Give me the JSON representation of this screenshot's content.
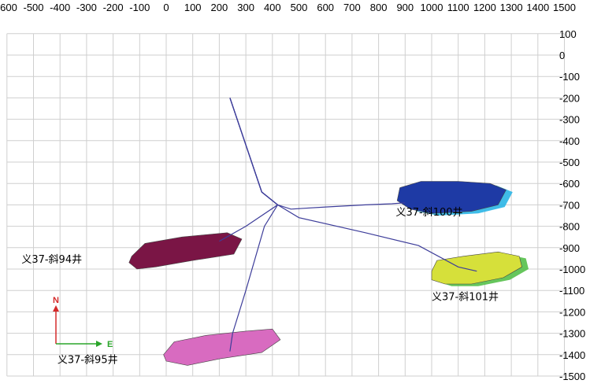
{
  "chart_data": {
    "type": "scatter",
    "title": "",
    "xlabel": "",
    "ylabel": "",
    "xlim": [
      -600,
      1500
    ],
    "ylim": [
      -1500,
      100
    ],
    "grid": true,
    "x_ticks": [
      -600,
      -500,
      -400,
      -300,
      -200,
      -100,
      0,
      100,
      200,
      300,
      400,
      500,
      600,
      700,
      800,
      900,
      1000,
      1100,
      1200,
      1300,
      1400,
      1500
    ],
    "y_ticks": [
      100,
      0,
      -100,
      -200,
      -300,
      -400,
      -500,
      -600,
      -700,
      -800,
      -900,
      -1000,
      -1100,
      -1200,
      -1300,
      -1400,
      -1500
    ],
    "wells": [
      {
        "name": "义37-斜94井",
        "label_at": [
          -545,
          -970
        ],
        "color": "#7a1545",
        "path": [
          [
            240,
            -200
          ],
          [
            360,
            -640
          ],
          [
            420,
            -700
          ],
          [
            300,
            -800
          ],
          [
            200,
            -870
          ]
        ],
        "blob": [
          [
            -130,
            -940
          ],
          [
            -80,
            -880
          ],
          [
            60,
            -850
          ],
          [
            230,
            -830
          ],
          [
            285,
            -860
          ],
          [
            255,
            -930
          ],
          [
            100,
            -960
          ],
          [
            -40,
            -990
          ],
          [
            -110,
            -1000
          ],
          [
            -140,
            -970
          ]
        ]
      },
      {
        "name": "义37-斜95井",
        "label_at": [
          -410,
          -1440
        ],
        "color": "#d86bc0",
        "path": [
          [
            240,
            -200
          ],
          [
            360,
            -640
          ],
          [
            420,
            -700
          ],
          [
            370,
            -800
          ],
          [
            300,
            -1100
          ],
          [
            250,
            -1300
          ],
          [
            240,
            -1385
          ]
        ],
        "blob": [
          [
            -10,
            -1400
          ],
          [
            30,
            -1340
          ],
          [
            150,
            -1310
          ],
          [
            300,
            -1290
          ],
          [
            400,
            -1280
          ],
          [
            430,
            -1330
          ],
          [
            360,
            -1390
          ],
          [
            200,
            -1420
          ],
          [
            80,
            -1450
          ],
          [
            0,
            -1430
          ]
        ]
      },
      {
        "name": "义37-斜100井",
        "label_at": [
          865,
          -750
        ],
        "color": "#1e3aa5",
        "halo": "#2ab5e5",
        "path": [
          [
            240,
            -200
          ],
          [
            360,
            -640
          ],
          [
            420,
            -700
          ],
          [
            470,
            -720
          ],
          [
            600,
            -710
          ],
          [
            750,
            -700
          ],
          [
            850,
            -695
          ],
          [
            900,
            -690
          ]
        ],
        "blob": [
          [
            880,
            -620
          ],
          [
            960,
            -590
          ],
          [
            1100,
            -590
          ],
          [
            1220,
            -600
          ],
          [
            1280,
            -630
          ],
          [
            1250,
            -700
          ],
          [
            1150,
            -730
          ],
          [
            1000,
            -740
          ],
          [
            920,
            -720
          ],
          [
            870,
            -680
          ]
        ]
      },
      {
        "name": "义37-斜101井",
        "label_at": [
          1000,
          -1145
        ],
        "color": "#d6e03a",
        "halo": "#55c04a",
        "path": [
          [
            240,
            -200
          ],
          [
            360,
            -640
          ],
          [
            420,
            -700
          ],
          [
            500,
            -760
          ],
          [
            750,
            -830
          ],
          [
            950,
            -890
          ],
          [
            1100,
            -990
          ],
          [
            1170,
            -1010
          ]
        ],
        "blob": [
          [
            1000,
            -1010
          ],
          [
            1020,
            -960
          ],
          [
            1120,
            -940
          ],
          [
            1250,
            -920
          ],
          [
            1330,
            -940
          ],
          [
            1340,
            -990
          ],
          [
            1270,
            -1040
          ],
          [
            1150,
            -1070
          ],
          [
            1050,
            -1070
          ],
          [
            1000,
            -1050
          ]
        ]
      }
    ]
  },
  "compass": {
    "north": "N",
    "east": "E",
    "north_color": "#d42a2a",
    "east_color": "#2aa52a"
  }
}
